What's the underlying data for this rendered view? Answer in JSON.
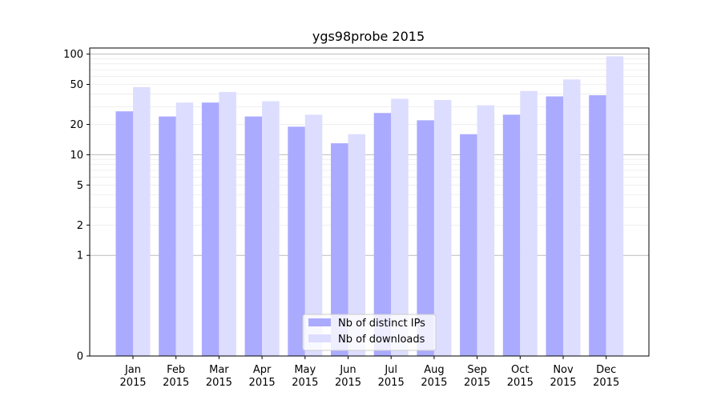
{
  "chart_data": {
    "type": "bar",
    "title": "ygs98probe 2015",
    "xlabel": "",
    "ylabel": "",
    "yscale": "symlog",
    "ylim": [
      0,
      115
    ],
    "yticks": [
      0,
      1,
      2,
      5,
      10,
      20,
      50,
      100
    ],
    "ytick_labels": [
      "0",
      "1",
      "2",
      "5",
      "10",
      "20",
      "50",
      "100"
    ],
    "categories": [
      "Jan\n2015",
      "Feb\n2015",
      "Mar\n2015",
      "Apr\n2015",
      "May\n2015",
      "Jun\n2015",
      "Jul\n2015",
      "Aug\n2015",
      "Sep\n2015",
      "Oct\n2015",
      "Nov\n2015",
      "Dec\n2015"
    ],
    "series": [
      {
        "name": "Nb of distinct IPs",
        "color": "#aaaaff",
        "values": [
          27,
          24,
          33,
          24,
          19,
          13,
          26,
          22,
          16,
          25,
          38,
          39
        ]
      },
      {
        "name": "Nb of downloads",
        "color": "#ddddff",
        "values": [
          47,
          33,
          42,
          34,
          25,
          16,
          36,
          35,
          31,
          43,
          56,
          95
        ]
      }
    ],
    "grid": true,
    "legend_position": "bottom-center"
  }
}
